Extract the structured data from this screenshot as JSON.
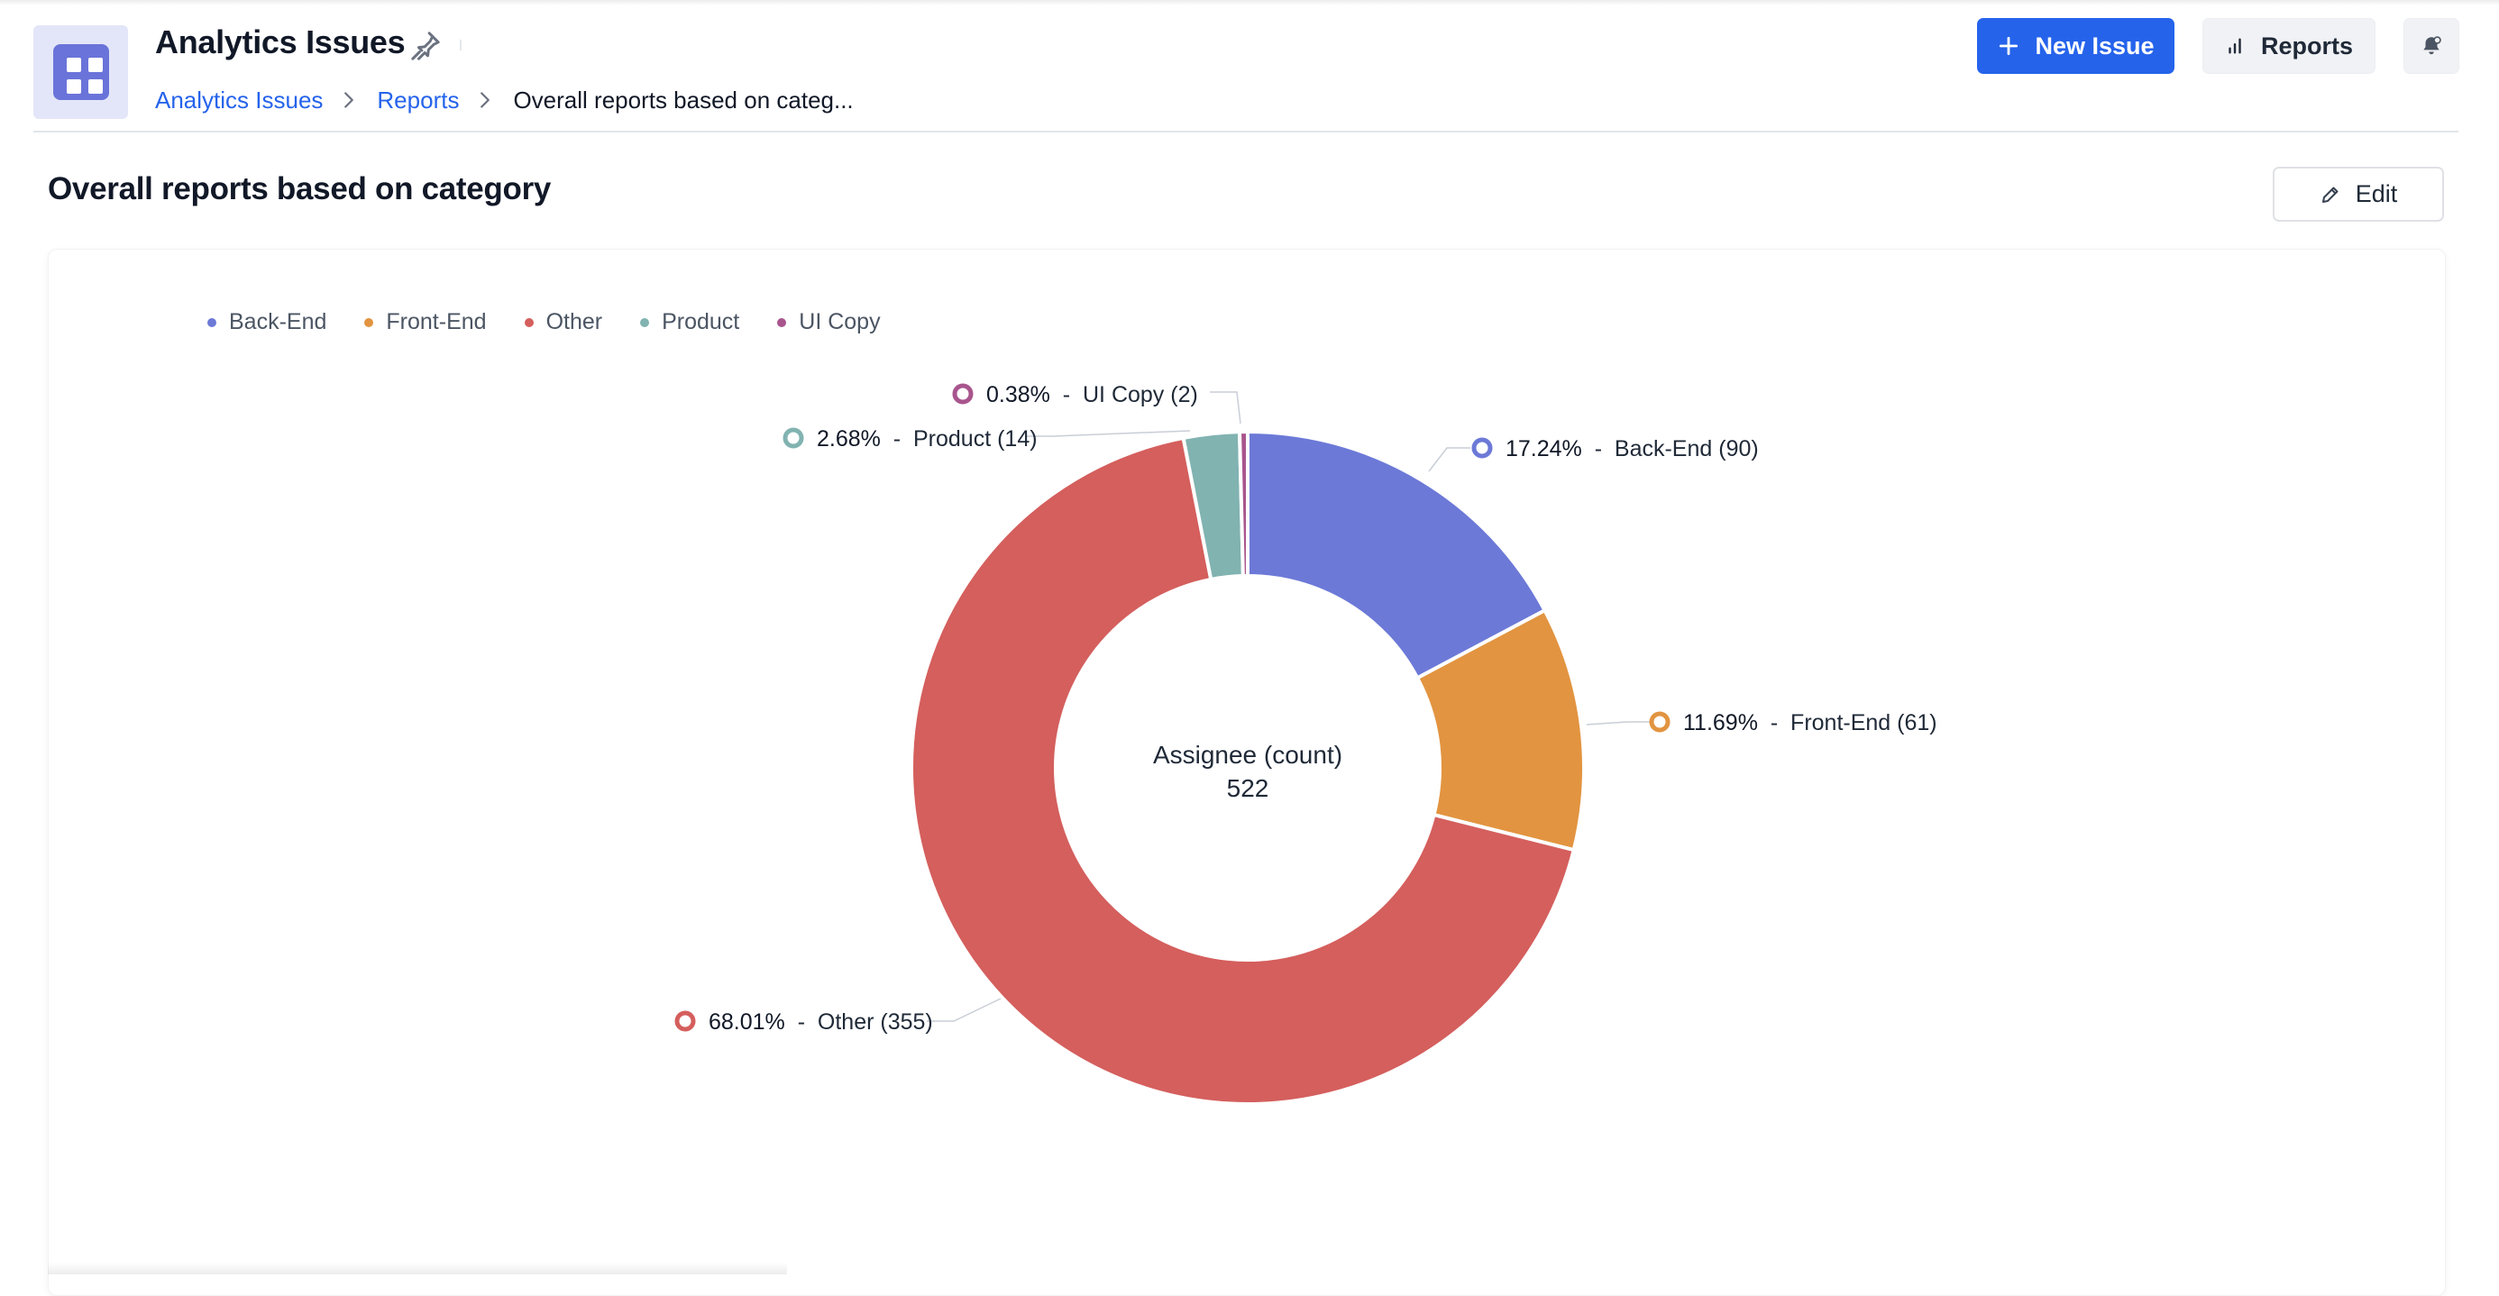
{
  "header": {
    "title": "Analytics Issues",
    "icons": {
      "app": "grid-icon",
      "pin": "pin-icon"
    },
    "breadcrumb": [
      "Analytics Issues",
      "Reports",
      "Overall reports based on categ..."
    ],
    "new_issue_label": "New Issue",
    "reports_label": "Reports",
    "notification_icon": "bell-settings-icon"
  },
  "report": {
    "title": "Overall reports based on category",
    "edit_label": "Edit"
  },
  "chart_data": {
    "type": "pie",
    "variant": "donut",
    "center_title": "Assignee (count)",
    "center_value": "522",
    "legend_position": "top-left",
    "slices": [
      {
        "name": "Back-End",
        "value": 90,
        "percent": "17.24%",
        "color": "#6c79d7"
      },
      {
        "name": "Front-End",
        "value": 61,
        "percent": "11.69%",
        "color": "#e29440"
      },
      {
        "name": "Other",
        "value": 355,
        "percent": "68.01%",
        "color": "#d45f5d"
      },
      {
        "name": "Product",
        "value": 14,
        "percent": "2.68%",
        "color": "#81b3b1"
      },
      {
        "name": "UI Copy",
        "value": 2,
        "percent": "0.38%",
        "color": "#a8558d"
      }
    ]
  },
  "colors": {
    "accent": "#2563eb",
    "link": "#2563eb"
  }
}
